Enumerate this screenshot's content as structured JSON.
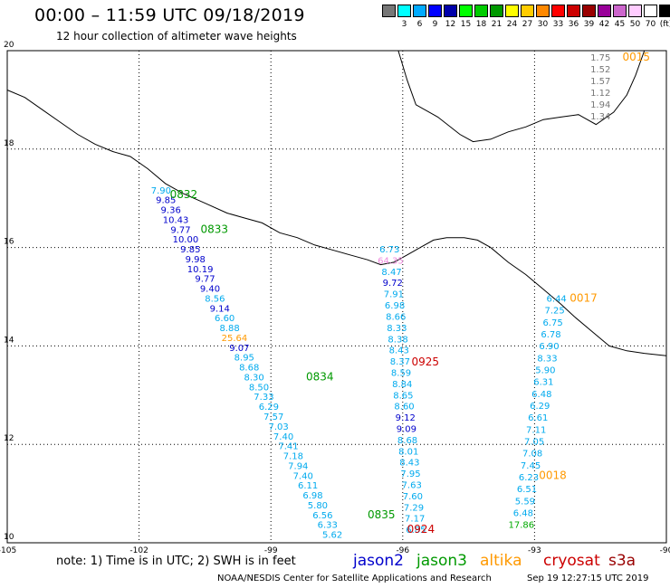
{
  "title": "00:00 – 11:59 UTC 09/18/2019",
  "subtitle": "12 hour collection of altimeter wave heights",
  "color_scale": [
    {
      "label": "",
      "color": "#777777"
    },
    {
      "label": "3",
      "color": "#00ffff"
    },
    {
      "label": "6",
      "color": "#00aaff"
    },
    {
      "label": "9",
      "color": "#0000ff"
    },
    {
      "label": "12",
      "color": "#0000aa"
    },
    {
      "label": "15",
      "color": "#00ff00"
    },
    {
      "label": "18",
      "color": "#00cc00"
    },
    {
      "label": "21",
      "color": "#009900"
    },
    {
      "label": "24",
      "color": "#ffff00"
    },
    {
      "label": "27",
      "color": "#ffcc00"
    },
    {
      "label": "30",
      "color": "#ff8800"
    },
    {
      "label": "33",
      "color": "#ff0000"
    },
    {
      "label": "36",
      "color": "#cc0000"
    },
    {
      "label": "39",
      "color": "#990000"
    },
    {
      "label": "42",
      "color": "#990099"
    },
    {
      "label": "45",
      "color": "#cc66cc"
    },
    {
      "label": "50",
      "color": "#ffccff"
    },
    {
      "label": "70",
      "color": "#ffffff"
    },
    {
      "label": "(ft)",
      "color": "#000000"
    }
  ],
  "colors": {
    "jason2": "#0000cc",
    "jason3": "#009900",
    "altika": "#ff9900",
    "cryosat": "#cc0000",
    "s3a": "#990000",
    "grey": "#777777",
    "cyan": "#00aaee",
    "pink": "#ee88dd",
    "green": "#00aa00"
  },
  "axes": {
    "lon_ticks": [
      -105,
      -102,
      -99,
      -96,
      -93,
      -90
    ],
    "lat_ticks": [
      10,
      12,
      14,
      16,
      18,
      20
    ],
    "lon_range": [
      -105,
      -90
    ],
    "lat_range": [
      10,
      20
    ]
  },
  "track_times": [
    {
      "label": "0015",
      "lon": -91.0,
      "lat": 19.8,
      "sat": "altika"
    },
    {
      "label": "0832",
      "lon": -101.3,
      "lat": 17.0,
      "sat": "jason3"
    },
    {
      "label": "0833",
      "lon": -100.6,
      "lat": 16.3,
      "sat": "jason3"
    },
    {
      "label": "0017",
      "lon": -92.2,
      "lat": 14.9,
      "sat": "altika"
    },
    {
      "label": "0925",
      "lon": -95.8,
      "lat": 13.6,
      "sat": "cryosat"
    },
    {
      "label": "0834",
      "lon": -98.2,
      "lat": 13.3,
      "sat": "jason3"
    },
    {
      "label": "0018",
      "lon": -92.9,
      "lat": 11.3,
      "sat": "altika"
    },
    {
      "label": "0835",
      "lon": -96.8,
      "lat": 10.5,
      "sat": "jason3"
    },
    {
      "label": "0924",
      "lon": -95.9,
      "lat": 10.2,
      "sat": "cryosat"
    }
  ],
  "tracks": [
    {
      "id": "jason-pass-west",
      "start": [
        -101.5,
        17.1
      ],
      "end": [
        -97.6,
        10.1
      ],
      "values": [
        {
          "v": "7.90",
          "c": "cyan"
        },
        {
          "v": "9.85",
          "c": "jason2"
        },
        {
          "v": "9.36",
          "c": "jason2"
        },
        {
          "v": "10.43",
          "c": "jason2"
        },
        {
          "v": "9.77",
          "c": "jason2"
        },
        {
          "v": "10.00",
          "c": "jason2"
        },
        {
          "v": "9.85",
          "c": "jason2"
        },
        {
          "v": "9.98",
          "c": "jason2"
        },
        {
          "v": "10.19",
          "c": "jason2"
        },
        {
          "v": "9.77",
          "c": "jason2"
        },
        {
          "v": "9.40",
          "c": "jason2"
        },
        {
          "v": "8.56",
          "c": "cyan"
        },
        {
          "v": "9.14",
          "c": "jason2"
        },
        {
          "v": "6.60",
          "c": "cyan"
        },
        {
          "v": "8.88",
          "c": "cyan"
        },
        {
          "v": "25.64",
          "c": "altika"
        },
        {
          "v": "9.07",
          "c": "jason2"
        },
        {
          "v": "8.95",
          "c": "cyan"
        },
        {
          "v": "8.68",
          "c": "cyan"
        },
        {
          "v": "8.30",
          "c": "cyan"
        },
        {
          "v": "8.50",
          "c": "cyan"
        },
        {
          "v": "7.33",
          "c": "cyan"
        },
        {
          "v": "6.29",
          "c": "cyan"
        },
        {
          "v": "7.57",
          "c": "cyan"
        },
        {
          "v": "7.03",
          "c": "cyan"
        },
        {
          "v": "7.40",
          "c": "cyan"
        },
        {
          "v": "7.41",
          "c": "cyan"
        },
        {
          "v": "7.18",
          "c": "cyan"
        },
        {
          "v": "7.94",
          "c": "cyan"
        },
        {
          "v": "7.40",
          "c": "cyan"
        },
        {
          "v": "6.11",
          "c": "cyan"
        },
        {
          "v": "6.98",
          "c": "cyan"
        },
        {
          "v": "5.80",
          "c": "cyan"
        },
        {
          "v": "6.56",
          "c": "cyan"
        },
        {
          "v": "6.33",
          "c": "cyan"
        },
        {
          "v": "5.62",
          "c": "cyan"
        }
      ]
    },
    {
      "id": "cryosat-pass",
      "start": [
        -96.3,
        15.9
      ],
      "end": [
        -95.7,
        10.2
      ],
      "values": [
        {
          "v": "6.73",
          "c": "cyan"
        },
        {
          "v": "64.35",
          "c": "pink"
        },
        {
          "v": "8.47",
          "c": "cyan"
        },
        {
          "v": "9.72",
          "c": "jason2"
        },
        {
          "v": "7.91",
          "c": "cyan"
        },
        {
          "v": "6.98",
          "c": "cyan"
        },
        {
          "v": "8.66",
          "c": "cyan"
        },
        {
          "v": "8.33",
          "c": "cyan"
        },
        {
          "v": "8.38",
          "c": "cyan"
        },
        {
          "v": "8.43",
          "c": "cyan"
        },
        {
          "v": "8.37",
          "c": "cyan"
        },
        {
          "v": "8.59",
          "c": "cyan"
        },
        {
          "v": "8.84",
          "c": "cyan"
        },
        {
          "v": "8.65",
          "c": "cyan"
        },
        {
          "v": "8.60",
          "c": "cyan"
        },
        {
          "v": "9.12",
          "c": "jason2"
        },
        {
          "v": "9.09",
          "c": "jason2"
        },
        {
          "v": "8.68",
          "c": "cyan"
        },
        {
          "v": "8.01",
          "c": "cyan"
        },
        {
          "v": "8.43",
          "c": "cyan"
        },
        {
          "v": "7.95",
          "c": "cyan"
        },
        {
          "v": "7.63",
          "c": "cyan"
        },
        {
          "v": "7.60",
          "c": "cyan"
        },
        {
          "v": "7.29",
          "c": "cyan"
        },
        {
          "v": "7.17",
          "c": "cyan"
        },
        {
          "v": "6.85",
          "c": "cyan"
        }
      ]
    },
    {
      "id": "altika-pass-east",
      "start": [
        -92.5,
        14.9
      ],
      "end": [
        -93.3,
        10.3
      ],
      "values": [
        {
          "v": "6.44",
          "c": "cyan"
        },
        {
          "v": "7.25",
          "c": "cyan"
        },
        {
          "v": "6.75",
          "c": "cyan"
        },
        {
          "v": "6.78",
          "c": "cyan"
        },
        {
          "v": "6.90",
          "c": "cyan"
        },
        {
          "v": "8.33",
          "c": "cyan"
        },
        {
          "v": "5.90",
          "c": "cyan"
        },
        {
          "v": "6.31",
          "c": "cyan"
        },
        {
          "v": "6.48",
          "c": "cyan"
        },
        {
          "v": "6.29",
          "c": "cyan"
        },
        {
          "v": "6.61",
          "c": "cyan"
        },
        {
          "v": "7.11",
          "c": "cyan"
        },
        {
          "v": "7.05",
          "c": "cyan"
        },
        {
          "v": "7.08",
          "c": "cyan"
        },
        {
          "v": "7.45",
          "c": "cyan"
        },
        {
          "v": "6.23",
          "c": "cyan"
        },
        {
          "v": "6.51",
          "c": "cyan"
        },
        {
          "v": "5.59",
          "c": "cyan"
        },
        {
          "v": "6.48",
          "c": "cyan"
        },
        {
          "v": "17.86",
          "c": "green"
        }
      ]
    },
    {
      "id": "altika-pass-ne",
      "start": [
        -91.5,
        19.8
      ],
      "end": [
        -91.5,
        18.6
      ],
      "values": [
        {
          "v": "1.75",
          "c": "grey"
        },
        {
          "v": "1.52",
          "c": "grey"
        },
        {
          "v": "1.57",
          "c": "grey"
        },
        {
          "v": "1.12",
          "c": "grey"
        },
        {
          "v": "1.94",
          "c": "grey"
        },
        {
          "v": "1.34",
          "c": "grey"
        }
      ]
    }
  ],
  "coastline": [
    [
      -105,
      19.2
    ],
    [
      -104.6,
      19.05
    ],
    [
      -104.2,
      18.8
    ],
    [
      -103.8,
      18.55
    ],
    [
      -103.4,
      18.3
    ],
    [
      -103.0,
      18.1
    ],
    [
      -102.6,
      17.95
    ],
    [
      -102.2,
      17.85
    ],
    [
      -101.8,
      17.6
    ],
    [
      -101.4,
      17.3
    ],
    [
      -101.0,
      17.1
    ],
    [
      -100.5,
      16.9
    ],
    [
      -100.0,
      16.7
    ],
    [
      -99.6,
      16.6
    ],
    [
      -99.2,
      16.5
    ],
    [
      -98.8,
      16.3
    ],
    [
      -98.4,
      16.2
    ],
    [
      -98.0,
      16.05
    ],
    [
      -97.6,
      15.95
    ],
    [
      -97.2,
      15.85
    ],
    [
      -96.8,
      15.75
    ],
    [
      -96.5,
      15.65
    ],
    [
      -96.2,
      15.7
    ],
    [
      -95.9,
      15.85
    ],
    [
      -95.6,
      16.0
    ],
    [
      -95.3,
      16.15
    ],
    [
      -95.0,
      16.2
    ],
    [
      -94.6,
      16.2
    ],
    [
      -94.3,
      16.15
    ],
    [
      -94.0,
      16.0
    ],
    [
      -93.6,
      15.7
    ],
    [
      -93.2,
      15.45
    ],
    [
      -92.8,
      15.15
    ],
    [
      -92.4,
      14.85
    ],
    [
      -92.1,
      14.6
    ],
    [
      -91.7,
      14.3
    ],
    [
      -91.3,
      14.0
    ],
    [
      -90.9,
      13.9
    ],
    [
      -90.5,
      13.85
    ],
    [
      -90,
      13.8
    ]
  ],
  "gulf_coast": [
    [
      -96.1,
      20.0
    ],
    [
      -95.9,
      19.4
    ],
    [
      -95.7,
      18.9
    ],
    [
      -95.2,
      18.65
    ],
    [
      -94.7,
      18.3
    ],
    [
      -94.4,
      18.15
    ],
    [
      -94.0,
      18.2
    ],
    [
      -93.6,
      18.35
    ],
    [
      -93.2,
      18.45
    ],
    [
      -92.8,
      18.6
    ],
    [
      -92.4,
      18.65
    ],
    [
      -92.0,
      18.7
    ],
    [
      -91.6,
      18.5
    ],
    [
      -91.2,
      18.75
    ],
    [
      -90.9,
      19.1
    ],
    [
      -90.7,
      19.5
    ],
    [
      -90.5,
      20.0
    ]
  ],
  "footnote": "note:  1) Time is in UTC;  2) SWH is in feet",
  "satellites": [
    {
      "name": "jason2",
      "color_key": "jason2"
    },
    {
      "name": "jason3",
      "color_key": "jason3"
    },
    {
      "name": "altika",
      "color_key": "altika"
    },
    {
      "name": "cryosat",
      "color_key": "cryosat"
    },
    {
      "name": "s3a",
      "color_key": "s3a"
    }
  ],
  "credit": "NOAA/NESDIS Center for Satellite Applications and Research",
  "generated": "Sep 19 12:27:15 UTC 2019"
}
